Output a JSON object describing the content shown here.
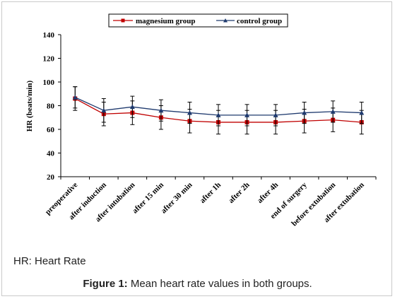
{
  "chart_data": {
    "type": "line",
    "ylabel": "HR (beats/min)",
    "ylim": [
      20,
      140
    ],
    "yticks": [
      20,
      40,
      60,
      80,
      100,
      120,
      140
    ],
    "legend_position": "top",
    "categories": [
      "preoperative",
      "after induction",
      "after intubation",
      "after 15 min",
      "after 30 min",
      "after 1h",
      "after 2h",
      "after 4h",
      "end of surgery",
      "before extubation",
      "after extubation"
    ],
    "series": [
      {
        "name": "magnesium group",
        "color": "#c00000",
        "marker": "square",
        "values": [
          86,
          73,
          74,
          70,
          67,
          66,
          66,
          66,
          67,
          68,
          66
        ],
        "error": [
          10,
          10,
          10,
          10,
          10,
          10,
          10,
          10,
          10,
          10,
          10
        ]
      },
      {
        "name": "control group",
        "color": "#1f3a6e",
        "marker": "triangle",
        "values": [
          87,
          76,
          79,
          76,
          74,
          72,
          72,
          72,
          74,
          75,
          74
        ],
        "error": [
          9,
          10,
          9,
          9,
          9,
          9,
          9,
          9,
          9,
          9,
          9
        ]
      }
    ]
  },
  "notes": {
    "abbreviation": "HR: Heart Rate"
  },
  "caption": {
    "label": "Figure 1:",
    "text": "Mean heart rate values in both groups."
  }
}
